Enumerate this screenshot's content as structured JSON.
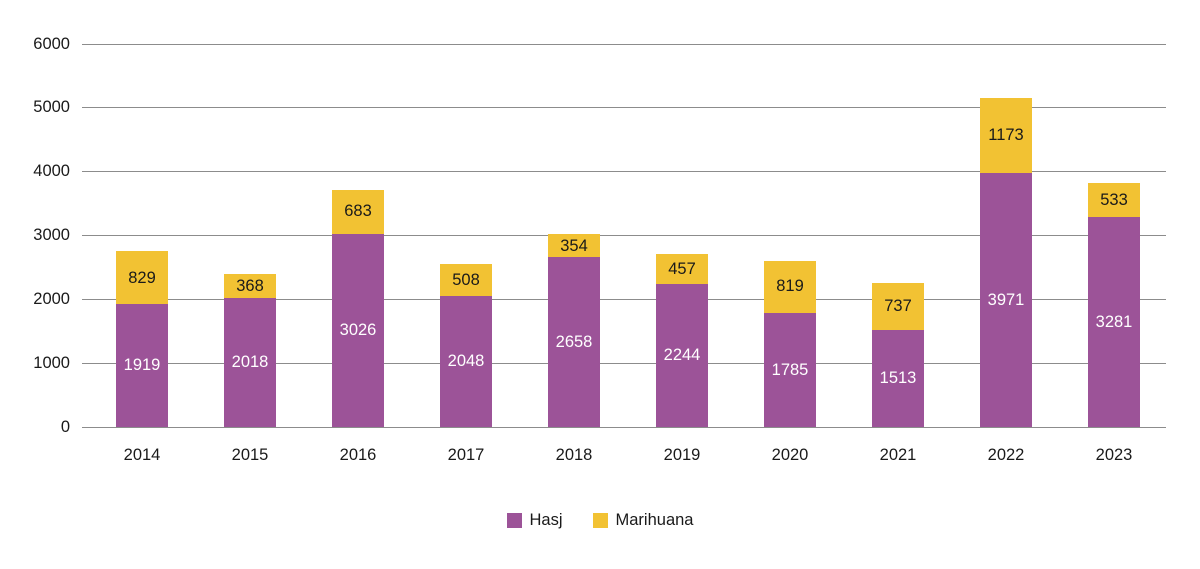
{
  "chart_data": {
    "type": "bar",
    "stacked": true,
    "title": "",
    "xlabel": "",
    "ylabel": "",
    "categories": [
      "2014",
      "2015",
      "2016",
      "2017",
      "2018",
      "2019",
      "2020",
      "2021",
      "2022",
      "2023"
    ],
    "series": [
      {
        "name": "Hasj",
        "color": "#9C5398",
        "label_color": "#FFFFFF",
        "values": [
          1919,
          2018,
          3026,
          2048,
          2658,
          2244,
          1785,
          1513,
          3971,
          3281
        ]
      },
      {
        "name": "Marihuana",
        "color": "#F2C233",
        "label_color": "#1A1A1A",
        "values": [
          829,
          368,
          683,
          508,
          354,
          457,
          819,
          737,
          1173,
          533
        ]
      }
    ],
    "ylim": [
      0,
      6000
    ],
    "yticks": [
      0,
      1000,
      2000,
      3000,
      4000,
      5000,
      6000
    ],
    "grid": true,
    "grid_color": "#8C8C8C",
    "axis_text_color": "#1A1A1A",
    "background": "#FFFFFF",
    "legend_position": "bottom",
    "show_value_labels": true
  }
}
